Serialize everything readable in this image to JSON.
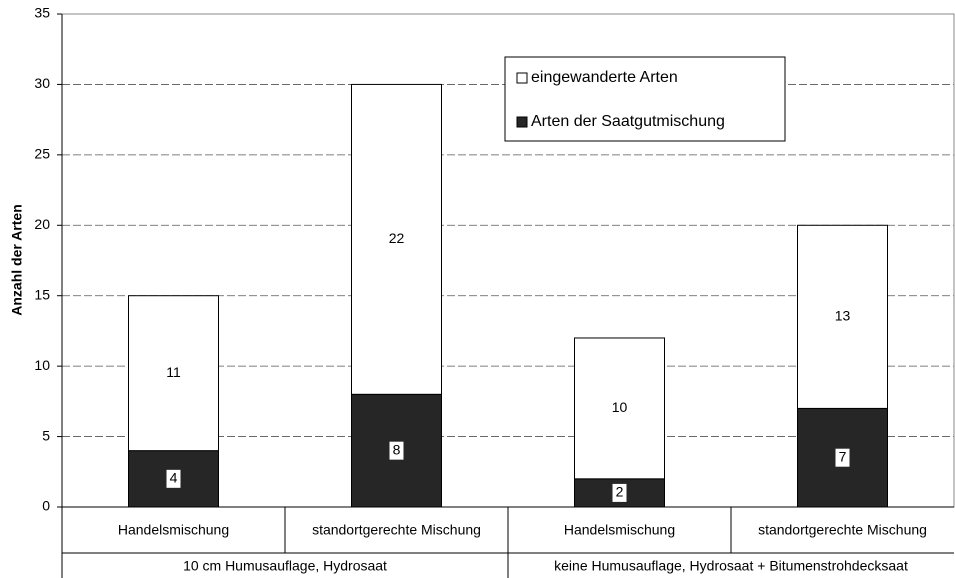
{
  "chart_data": {
    "type": "stacked-bar",
    "ylabel": "Anzahl der Arten",
    "categories": [
      "Handelsmischung",
      "standortgerechte Mischung",
      "Handelsmischung",
      "standortgerechte Mischung"
    ],
    "groups": [
      "10 cm Humusauflage, Hydrosaat",
      "keine Humusauflage, Hydrosaat + Bitumenstrohdecksaat"
    ],
    "series": [
      {
        "name": "Arten der Saatgutmischung",
        "color": "#262626",
        "values": [
          4,
          8,
          2,
          7
        ]
      },
      {
        "name": "eingewanderte Arten",
        "color": "#ffffff",
        "values": [
          11,
          22,
          10,
          13
        ]
      }
    ],
    "ylim": [
      0,
      35
    ],
    "yticks": [
      0,
      5,
      10,
      15,
      20,
      25,
      30,
      35
    ],
    "grid": true,
    "legend": "upper right"
  }
}
